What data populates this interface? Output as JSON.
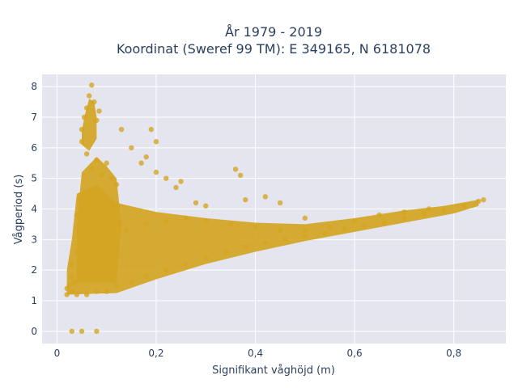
{
  "chart_data": {
    "type": "scatter",
    "title_lines": [
      "År 1979 - 2019",
      "Koordinat (Sweref 99 TM): E 349165, N 6181078"
    ],
    "xlabel": "Signifikant våghöjd (m)",
    "ylabel": "Vågperiod (s)",
    "xlim": [
      -0.03,
      0.905
    ],
    "ylim": [
      -0.4,
      8.4
    ],
    "x_ticks": [
      0,
      0.2,
      0.4,
      0.6,
      0.8
    ],
    "x_tick_labels": [
      "0",
      "0,2",
      "0,4",
      "0,6",
      "0,8"
    ],
    "y_ticks": [
      0,
      1,
      2,
      3,
      4,
      5,
      6,
      7,
      8
    ],
    "y_tick_labels": [
      "0",
      "1",
      "2",
      "3",
      "4",
      "5",
      "6",
      "7",
      "8"
    ],
    "grid": true,
    "marker_color": "#d4a522",
    "plot_background": "#e5e5f0",
    "description_of_trend": "",
    "series": [
      {
        "name": "",
        "points": [
          [
            0.02,
            1.4
          ],
          [
            0.02,
            1.2
          ],
          [
            0.025,
            1.5
          ],
          [
            0.03,
            0
          ],
          [
            0.05,
            0
          ],
          [
            0.08,
            0
          ],
          [
            0.03,
            1.3
          ],
          [
            0.03,
            1.8
          ],
          [
            0.03,
            2.2
          ],
          [
            0.035,
            1.6
          ],
          [
            0.04,
            1.2
          ],
          [
            0.04,
            2.6
          ],
          [
            0.04,
            3.8
          ],
          [
            0.045,
            4.3
          ],
          [
            0.05,
            6.2
          ],
          [
            0.05,
            6.6
          ],
          [
            0.055,
            7.0
          ],
          [
            0.06,
            7.3
          ],
          [
            0.065,
            7.7
          ],
          [
            0.07,
            8.05
          ],
          [
            0.075,
            7.5
          ],
          [
            0.08,
            6.9
          ],
          [
            0.085,
            7.2
          ],
          [
            0.06,
            5.8
          ],
          [
            0.07,
            5.3
          ],
          [
            0.08,
            5.6
          ],
          [
            0.09,
            5.1
          ],
          [
            0.1,
            5.5
          ],
          [
            0.11,
            5.0
          ],
          [
            0.12,
            4.8
          ],
          [
            0.13,
            6.6
          ],
          [
            0.15,
            6.0
          ],
          [
            0.17,
            5.5
          ],
          [
            0.18,
            5.7
          ],
          [
            0.19,
            6.6
          ],
          [
            0.2,
            6.2
          ],
          [
            0.2,
            5.2
          ],
          [
            0.22,
            5.0
          ],
          [
            0.25,
            4.9
          ],
          [
            0.24,
            4.7
          ],
          [
            0.28,
            4.2
          ],
          [
            0.3,
            4.1
          ],
          [
            0.36,
            5.3
          ],
          [
            0.37,
            5.1
          ],
          [
            0.38,
            4.3
          ],
          [
            0.42,
            4.4
          ],
          [
            0.45,
            4.2
          ],
          [
            0.5,
            3.7
          ],
          [
            0.06,
            1.2
          ],
          [
            0.08,
            1.3
          ],
          [
            0.1,
            1.3
          ],
          [
            0.12,
            1.5
          ],
          [
            0.15,
            1.6
          ],
          [
            0.18,
            1.8
          ],
          [
            0.22,
            2.0
          ],
          [
            0.26,
            2.2
          ],
          [
            0.3,
            2.4
          ],
          [
            0.34,
            2.6
          ],
          [
            0.38,
            2.75
          ],
          [
            0.42,
            2.9
          ],
          [
            0.46,
            3.0
          ],
          [
            0.5,
            3.1
          ],
          [
            0.54,
            3.2
          ],
          [
            0.58,
            3.35
          ],
          [
            0.62,
            3.45
          ],
          [
            0.66,
            3.55
          ],
          [
            0.7,
            3.7
          ],
          [
            0.74,
            3.85
          ],
          [
            0.78,
            3.95
          ],
          [
            0.82,
            4.1
          ],
          [
            0.85,
            4.25
          ],
          [
            0.86,
            4.3
          ],
          [
            0.1,
            3.0
          ],
          [
            0.14,
            3.3
          ],
          [
            0.18,
            3.5
          ],
          [
            0.22,
            3.6
          ],
          [
            0.26,
            3.7
          ],
          [
            0.3,
            3.6
          ],
          [
            0.35,
            3.5
          ],
          [
            0.4,
            3.4
          ],
          [
            0.45,
            3.3
          ],
          [
            0.5,
            3.3
          ],
          [
            0.55,
            3.4
          ],
          [
            0.6,
            3.6
          ],
          [
            0.65,
            3.8
          ],
          [
            0.7,
            3.9
          ],
          [
            0.75,
            4.0
          ]
        ]
      }
    ]
  }
}
